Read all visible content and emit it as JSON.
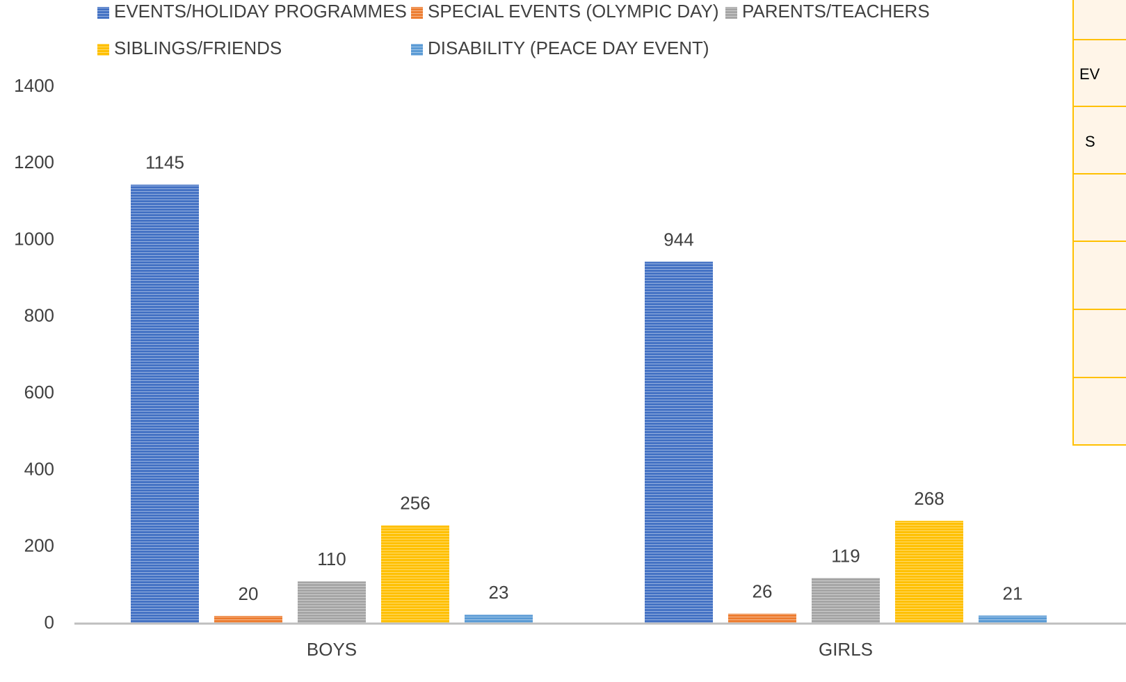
{
  "chart_data": {
    "type": "bar",
    "categories": [
      "BOYS",
      "GIRLS"
    ],
    "series": [
      {
        "name": "EVENTS/HOLIDAY PROGRAMMES",
        "color": "#4472c4",
        "values": [
          1145,
          944
        ]
      },
      {
        "name": "SPECIAL EVENTS (OLYMPIC DAY)",
        "color": "#ed7d31",
        "values": [
          20,
          26
        ]
      },
      {
        "name": "PARENTS/TEACHERS",
        "color": "#a5a5a5",
        "values": [
          110,
          119
        ]
      },
      {
        "name": "SIBLINGS/FRIENDS",
        "color": "#ffc000",
        "values": [
          256,
          268
        ]
      },
      {
        "name": "DISABILITY (PEACE DAY EVENT)",
        "color": "#5b9bd5",
        "values": [
          23,
          21
        ]
      }
    ],
    "ylim": [
      0,
      1400
    ],
    "yticks": [
      0,
      200,
      400,
      600,
      800,
      1000,
      1200,
      1400
    ],
    "grid": false,
    "legend": "top",
    "data_labels": true
  },
  "side_table": {
    "cells": [
      "EV",
      "S"
    ]
  }
}
